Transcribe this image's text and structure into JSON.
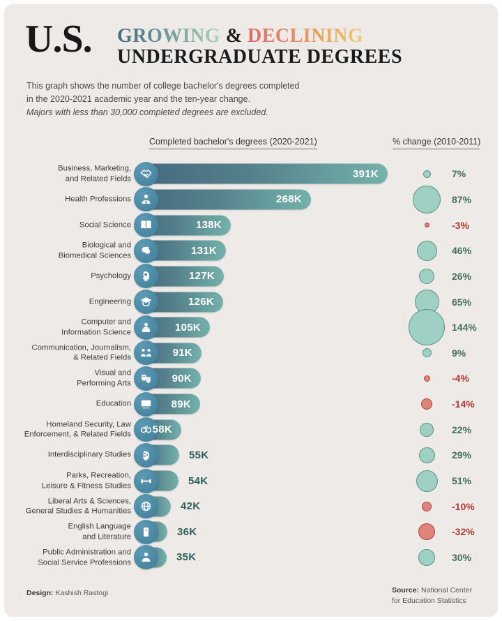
{
  "header": {
    "prefix": "U.S.",
    "growing": "GROWING",
    "ampersand": "&",
    "declining": "DECLINING",
    "line2": "UNDERGRADUATE DEGREES"
  },
  "description": {
    "line1": "This graph shows the number of college bachelor's degrees completed",
    "line2": "in the 2020-2021 academic year and the ten-year change.",
    "note": "Majors with less than 30,000 completed degrees are excluded."
  },
  "columns": {
    "bars": "Completed bachelor's degrees (2020-2021)",
    "change": "% change (2010-2011)"
  },
  "footer": {
    "design_label": "Design:",
    "design_value": "Kashish Rastogi",
    "source_label": "Source:",
    "source_value": "National Center for Education Statistics"
  },
  "colors": {
    "canvas_bg": "#edeae7",
    "bar_gradient_start": "#45697f",
    "bar_gradient_end": "#74b2ab",
    "icon_circle": "#4584a1",
    "value_inside": "#ffffff",
    "value_outside": "#2e605b",
    "positive_circle_fill": "#9fd0c4",
    "positive_circle_border": "#5a9383",
    "negative_circle_fill": "#e2837b",
    "negative_circle_border": "#a8463f",
    "positive_text": "#44705f",
    "negative_text": "#b23a33"
  },
  "chart_data": {
    "type": "bar",
    "title": "U.S. Growing & Declining Undergraduate Degrees",
    "subtitle": "This graph shows the number of college bachelor's degrees completed in the 2020-2021 academic year and the ten-year change.",
    "xlabel": "Completed bachelor's degrees (2020-2021)",
    "ylabel": "% change (2010-2011)",
    "legend_position": "none",
    "grid": false,
    "xlim_thousands": [
      0,
      400
    ],
    "categories": [
      "Business, Marketing, and Related Fields",
      "Health Professions",
      "Social Science",
      "Biological and Biomedical Sciences",
      "Psychology",
      "Engineering",
      "Computer and Information Science",
      "Communication, Journalism, & Related Fields",
      "Visual and Performing Arts",
      "Education",
      "Homeland Security, Law Enforcement, & Related Fields",
      "Interdisciplinary Studies",
      "Parks, Recreation, Leisure & Fitness Studies",
      "Liberal Arts & Sciences, General Studies & Humanities",
      "English Language and Literature",
      "Public Administration and Social Service Professions"
    ],
    "series": [
      {
        "name": "Completed bachelor's degrees (2020-2021), thousands",
        "values": [
          391,
          268,
          138,
          131,
          127,
          126,
          105,
          91,
          90,
          89,
          58,
          55,
          54,
          42,
          36,
          35
        ]
      },
      {
        "name": "% change (2010-2011)",
        "values": [
          7,
          87,
          -3,
          46,
          26,
          65,
          144,
          9,
          -4,
          -14,
          22,
          29,
          51,
          -10,
          -32,
          30
        ]
      }
    ],
    "rows": [
      {
        "label_lines": [
          "Business, Marketing,",
          "and Related Fields"
        ],
        "value": 391,
        "value_label": "391K",
        "pct": 7,
        "pct_label": "7%",
        "icon": "handshake"
      },
      {
        "label_lines": [
          "Health Professions"
        ],
        "value": 268,
        "value_label": "268K",
        "pct": 87,
        "pct_label": "87%",
        "icon": "medic-person"
      },
      {
        "label_lines": [
          "Social Science"
        ],
        "value": 138,
        "value_label": "138K",
        "pct": -3,
        "pct_label": "-3%",
        "icon": "open-book"
      },
      {
        "label_lines": [
          "Biological and",
          "Biomedical Sciences"
        ],
        "value": 131,
        "value_label": "131K",
        "pct": 46,
        "pct_label": "46%",
        "icon": "brain"
      },
      {
        "label_lines": [
          "Psychology"
        ],
        "value": 127,
        "value_label": "127K",
        "pct": 26,
        "pct_label": "26%",
        "icon": "psychology-head"
      },
      {
        "label_lines": [
          "Engineering"
        ],
        "value": 126,
        "value_label": "126K",
        "pct": 65,
        "pct_label": "65%",
        "icon": "graduation-cap"
      },
      {
        "label_lines": [
          "Computer and",
          "Information Science"
        ],
        "value": 105,
        "value_label": "105K",
        "pct": 144,
        "pct_label": "144%",
        "icon": "computer-person"
      },
      {
        "label_lines": [
          "Communication, Journalism,",
          "& Related Fields"
        ],
        "value": 91,
        "value_label": "91K",
        "pct": 9,
        "pct_label": "9%",
        "icon": "people-communication"
      },
      {
        "label_lines": [
          "Visual and",
          "Performing Arts"
        ],
        "value": 90,
        "value_label": "90K",
        "pct": -4,
        "pct_label": "-4%",
        "icon": "theater-masks"
      },
      {
        "label_lines": [
          "Education"
        ],
        "value": 89,
        "value_label": "89K",
        "pct": -14,
        "pct_label": "-14%",
        "icon": "classroom-board"
      },
      {
        "label_lines": [
          "Homeland Security, Law",
          "Enforcement, & Related Fields"
        ],
        "value": 58,
        "value_label": "58K",
        "pct": 22,
        "pct_label": "22%",
        "icon": "handcuffs"
      },
      {
        "label_lines": [
          "Interdisciplinary Studies"
        ],
        "value": 55,
        "value_label": "55K",
        "pct": 29,
        "pct_label": "29%",
        "icon": "head-network"
      },
      {
        "label_lines": [
          "Parks, Recreation,",
          "Leisure & Fitness Studies"
        ],
        "value": 54,
        "value_label": "54K",
        "pct": 51,
        "pct_label": "51%",
        "icon": "dumbbell"
      },
      {
        "label_lines": [
          "Liberal Arts & Sciences,",
          "General Studies & Humanities"
        ],
        "value": 42,
        "value_label": "42K",
        "pct": -10,
        "pct_label": "-10%",
        "icon": "globe"
      },
      {
        "label_lines": [
          "English Language",
          "and Literature"
        ],
        "value": 36,
        "value_label": "36K",
        "pct": -32,
        "pct_label": "-32%",
        "icon": "book"
      },
      {
        "label_lines": [
          "Public Administration and",
          "Social Service Professions"
        ],
        "value": 35,
        "value_label": "35K",
        "pct": 30,
        "pct_label": "30%",
        "icon": "person"
      }
    ]
  }
}
